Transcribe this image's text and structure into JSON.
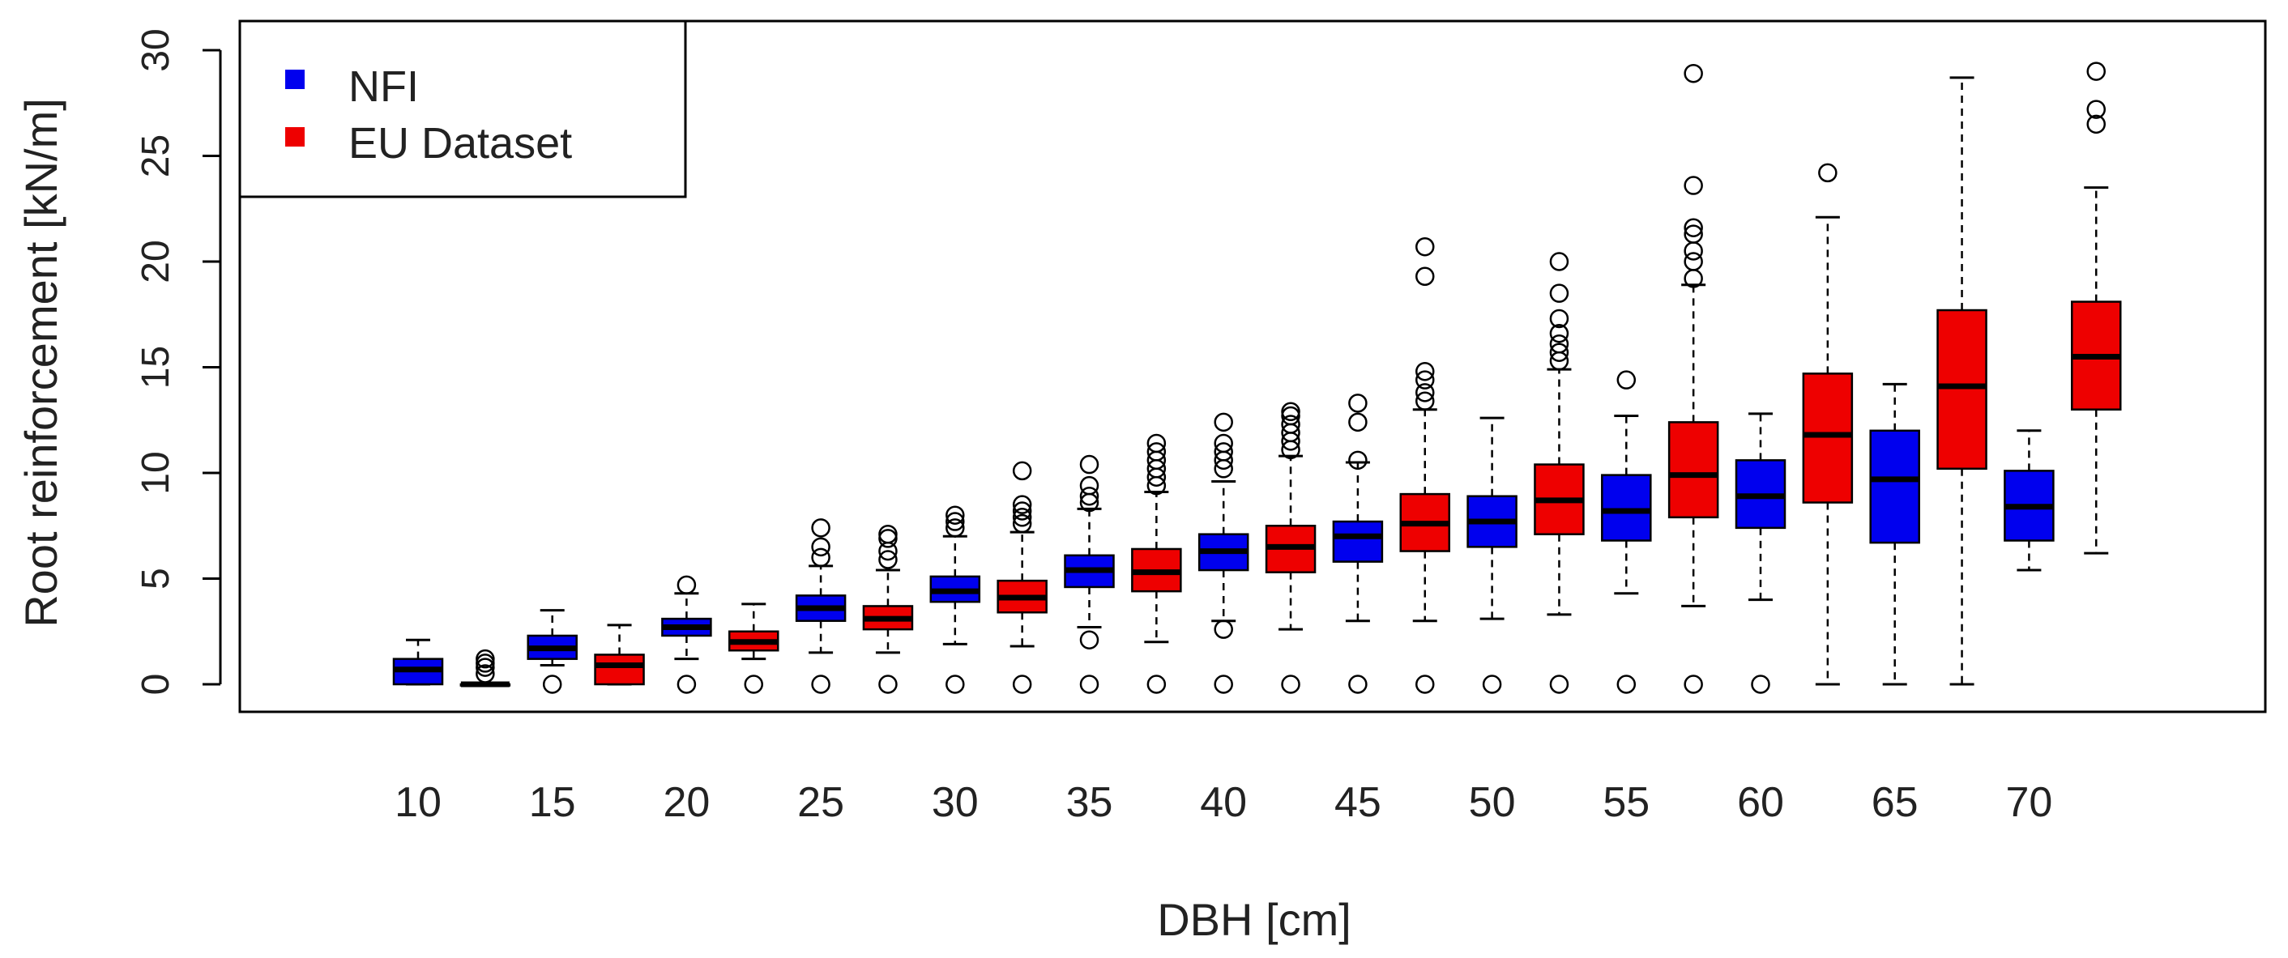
{
  "chart_data": {
    "type": "boxplot",
    "xlabel": "DBH [cm]",
    "ylabel": "Root reinforcement [kN/m]",
    "ylim": [
      0,
      30
    ],
    "yticks": [
      "0",
      "5",
      "10",
      "15",
      "20",
      "25",
      "30"
    ],
    "xticks": [
      "10",
      "15",
      "20",
      "25",
      "30",
      "35",
      "40",
      "45",
      "50",
      "55",
      "60",
      "65",
      "70"
    ],
    "grid": false,
    "legend_position": "top-left",
    "colors": {
      "NFI": "#0000ee",
      "EU Dataset": "#ee0000"
    },
    "series": [
      {
        "name": "NFI",
        "boxes": [
          {
            "x": 10,
            "min": 0.0,
            "q1": 0.0,
            "median": 0.7,
            "q3": 1.2,
            "max": 2.1,
            "outliers": []
          },
          {
            "x": 15,
            "min": 0.9,
            "q1": 1.2,
            "median": 1.7,
            "q3": 2.3,
            "max": 3.5,
            "outliers": [
              0
            ]
          },
          {
            "x": 20,
            "min": 1.2,
            "q1": 2.3,
            "median": 2.7,
            "q3": 3.1,
            "max": 4.3,
            "outliers": [
              0,
              4.7
            ]
          },
          {
            "x": 25,
            "min": 1.5,
            "q1": 3.0,
            "median": 3.6,
            "q3": 4.2,
            "max": 5.6,
            "outliers": [
              0,
              6.0,
              6.5,
              7.4
            ]
          },
          {
            "x": 30,
            "min": 1.9,
            "q1": 3.9,
            "median": 4.4,
            "q3": 5.1,
            "max": 7.0,
            "outliers": [
              0,
              7.4,
              7.7,
              8.0
            ]
          },
          {
            "x": 35,
            "min": 2.7,
            "q1": 4.6,
            "median": 5.4,
            "q3": 6.1,
            "max": 8.3,
            "outliers": [
              0,
              2.1,
              8.6,
              8.9,
              9.4,
              10.4
            ]
          },
          {
            "x": 40,
            "min": 3.0,
            "q1": 5.4,
            "median": 6.3,
            "q3": 7.1,
            "max": 9.6,
            "outliers": [
              0,
              2.6,
              10.2,
              10.6,
              11.0,
              11.4,
              12.4
            ]
          },
          {
            "x": 45,
            "min": 3.0,
            "q1": 5.8,
            "median": 7.0,
            "q3": 7.7,
            "max": 10.5,
            "outliers": [
              0,
              10.6,
              12.4,
              13.3
            ]
          },
          {
            "x": 50,
            "min": 3.1,
            "q1": 6.5,
            "median": 7.7,
            "q3": 8.9,
            "max": 12.6,
            "outliers": [
              0
            ]
          },
          {
            "x": 55,
            "min": 4.3,
            "q1": 6.8,
            "median": 8.2,
            "q3": 9.9,
            "max": 12.7,
            "outliers": [
              0,
              14.4
            ]
          },
          {
            "x": 60,
            "min": 4.0,
            "q1": 7.4,
            "median": 8.9,
            "q3": 10.6,
            "max": 12.8,
            "outliers": [
              0
            ]
          },
          {
            "x": 65,
            "min": 0.0,
            "q1": 6.7,
            "median": 9.7,
            "q3": 12.0,
            "max": 14.2,
            "outliers": []
          },
          {
            "x": 70,
            "min": 5.4,
            "q1": 6.8,
            "median": 8.4,
            "q3": 10.1,
            "max": 12.0,
            "outliers": []
          }
        ]
      },
      {
        "name": "EU Dataset",
        "boxes": [
          {
            "x": 12.5,
            "min": 0.0,
            "q1": 0.0,
            "median": 0.0,
            "q3": 0.0,
            "max": 0.0,
            "outliers": [
              0.5,
              0.8,
              1.0,
              1.2
            ]
          },
          {
            "x": 17.5,
            "min": 0.0,
            "q1": 0.0,
            "median": 0.9,
            "q3": 1.4,
            "max": 2.8,
            "outliers": []
          },
          {
            "x": 22.5,
            "min": 1.2,
            "q1": 1.6,
            "median": 2.0,
            "q3": 2.5,
            "max": 3.8,
            "outliers": [
              0
            ]
          },
          {
            "x": 27.5,
            "min": 1.5,
            "q1": 2.6,
            "median": 3.1,
            "q3": 3.7,
            "max": 5.4,
            "outliers": [
              0,
              5.9,
              6.3,
              6.9,
              7.1
            ]
          },
          {
            "x": 32.5,
            "min": 1.8,
            "q1": 3.4,
            "median": 4.1,
            "q3": 4.9,
            "max": 7.2,
            "outliers": [
              0,
              7.6,
              7.9,
              8.2,
              8.5,
              10.1
            ]
          },
          {
            "x": 37.5,
            "min": 2.0,
            "q1": 4.4,
            "median": 5.3,
            "q3": 6.4,
            "max": 9.1,
            "outliers": [
              0,
              9.4,
              9.8,
              10.2,
              10.6,
              11.0,
              11.4
            ]
          },
          {
            "x": 42.5,
            "min": 2.6,
            "q1": 5.3,
            "median": 6.5,
            "q3": 7.5,
            "max": 10.8,
            "outliers": [
              0,
              11.1,
              11.5,
              11.9,
              12.3,
              12.7,
              12.9
            ]
          },
          {
            "x": 47.5,
            "min": 3.0,
            "q1": 6.3,
            "median": 7.6,
            "q3": 9.0,
            "max": 13.0,
            "outliers": [
              0,
              13.4,
              13.8,
              14.4,
              14.8,
              19.3,
              20.7
            ]
          },
          {
            "x": 52.5,
            "min": 3.3,
            "q1": 7.1,
            "median": 8.7,
            "q3": 10.4,
            "max": 14.9,
            "outliers": [
              0,
              15.3,
              15.7,
              16.1,
              16.6,
              17.3,
              18.5,
              20.0
            ]
          },
          {
            "x": 57.5,
            "min": 3.7,
            "q1": 7.9,
            "median": 9.9,
            "q3": 12.4,
            "max": 18.9,
            "outliers": [
              0,
              19.2,
              20.0,
              20.5,
              21.3,
              21.6,
              23.6,
              28.9
            ]
          },
          {
            "x": 62.5,
            "min": 0.0,
            "q1": 8.6,
            "median": 11.8,
            "q3": 14.7,
            "max": 22.1,
            "outliers": [
              24.2
            ]
          },
          {
            "x": 67.5,
            "min": 0.0,
            "q1": 10.2,
            "median": 14.1,
            "q3": 17.7,
            "max": 28.7,
            "outliers": []
          },
          {
            "x": 72.5,
            "min": 6.2,
            "q1": 13.0,
            "median": 15.5,
            "q3": 18.1,
            "max": 23.5,
            "outliers": [
              26.5,
              27.2,
              29.0
            ]
          }
        ]
      }
    ]
  }
}
